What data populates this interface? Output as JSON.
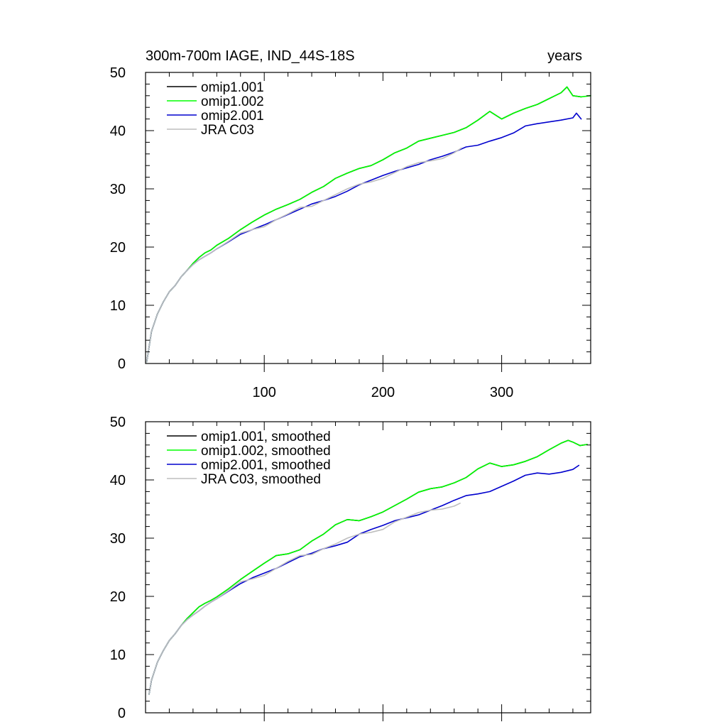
{
  "chart_data": [
    {
      "type": "line",
      "title": "300m-700m IAGE, IND_44S-18S",
      "units": "years",
      "xlim": [
        0,
        375
      ],
      "ylim": [
        0,
        50
      ],
      "x_ticks": [
        100,
        200,
        300
      ],
      "y_ticks": [
        0,
        10,
        20,
        30,
        40,
        50
      ],
      "x_tick_labels": [
        "100",
        "200",
        "300"
      ],
      "y_tick_labels": [
        "0",
        "10",
        "20",
        "30",
        "40",
        "50"
      ],
      "legend_position": "top-left",
      "series": [
        {
          "name": "omip1.001",
          "color": "#000000",
          "x": [
            1,
            5,
            10,
            15,
            20,
            25,
            30,
            35,
            40,
            45,
            50,
            55,
            60,
            70,
            80,
            90,
            100,
            110,
            120,
            130,
            140,
            150,
            160,
            170,
            180,
            190,
            200,
            210,
            220,
            230,
            240,
            250,
            260,
            270,
            280,
            290,
            300,
            310,
            320,
            330,
            340,
            350,
            355,
            360,
            367
          ],
          "y": [
            0.3,
            5.5,
            8.5,
            10.6,
            12.3,
            13.4,
            14.9,
            16.0,
            17.2,
            18.2,
            19.0,
            19.5,
            20.3,
            21.5,
            23.0,
            24.3,
            25.5,
            26.5,
            27.3,
            28.2,
            29.4,
            30.4,
            31.8,
            32.7,
            33.5,
            34.0,
            35.0,
            36.2,
            37.0,
            38.2,
            38.7,
            39.2,
            39.7,
            40.5,
            41.8,
            43.3,
            42.0,
            43.0,
            43.8,
            44.5,
            45.5,
            46.5,
            47.5,
            46.0,
            45.8
          ]
        },
        {
          "name": "omip1.002",
          "color": "#00ff00",
          "x": [
            1,
            5,
            10,
            15,
            20,
            25,
            30,
            35,
            40,
            45,
            50,
            55,
            60,
            70,
            80,
            90,
            100,
            110,
            120,
            130,
            140,
            150,
            160,
            170,
            180,
            190,
            200,
            210,
            220,
            230,
            240,
            250,
            260,
            270,
            280,
            290,
            300,
            310,
            320,
            330,
            340,
            350,
            355,
            360,
            367,
            375
          ],
          "y": [
            0.3,
            5.5,
            8.5,
            10.6,
            12.3,
            13.4,
            14.9,
            16.0,
            17.2,
            18.2,
            19.0,
            19.5,
            20.3,
            21.5,
            23.0,
            24.3,
            25.5,
            26.5,
            27.3,
            28.2,
            29.4,
            30.4,
            31.8,
            32.7,
            33.5,
            34.0,
            35.0,
            36.2,
            37.0,
            38.2,
            38.7,
            39.2,
            39.7,
            40.5,
            41.8,
            43.3,
            42.0,
            43.0,
            43.8,
            44.5,
            45.5,
            46.5,
            47.5,
            46.0,
            45.8,
            46.0
          ]
        },
        {
          "name": "omip2.001",
          "color": "#0000cd",
          "x": [
            1,
            5,
            10,
            15,
            20,
            25,
            30,
            35,
            40,
            45,
            50,
            55,
            60,
            70,
            80,
            90,
            100,
            110,
            120,
            130,
            140,
            150,
            160,
            170,
            180,
            190,
            200,
            210,
            220,
            230,
            240,
            250,
            260,
            270,
            280,
            290,
            300,
            310,
            320,
            330,
            340,
            350,
            360,
            363,
            367
          ],
          "y": [
            0.3,
            5.5,
            8.5,
            10.6,
            12.3,
            13.4,
            14.9,
            16.0,
            17.0,
            17.8,
            18.4,
            19.0,
            19.7,
            20.9,
            22.2,
            23.0,
            23.8,
            24.7,
            25.6,
            26.5,
            27.4,
            28.0,
            28.7,
            29.6,
            30.7,
            31.5,
            32.3,
            33.0,
            33.6,
            34.2,
            35.0,
            35.6,
            36.3,
            37.2,
            37.5,
            38.2,
            38.8,
            39.6,
            40.8,
            41.2,
            41.5,
            41.8,
            42.2,
            43.0,
            42.0
          ]
        },
        {
          "name": "JRA C03",
          "color": "#bebebe",
          "x": [
            1,
            5,
            10,
            15,
            20,
            25,
            30,
            35,
            40,
            45,
            50,
            55,
            60,
            70,
            80,
            90,
            100,
            110,
            120,
            130,
            140,
            150,
            160,
            170,
            180,
            190,
            200,
            210,
            220,
            230,
            240,
            250,
            260,
            266
          ],
          "y": [
            0.3,
            5.5,
            8.5,
            10.6,
            12.3,
            13.4,
            14.9,
            16.0,
            17.0,
            17.8,
            18.4,
            19.0,
            19.7,
            21.0,
            22.4,
            23.0,
            23.5,
            24.7,
            25.7,
            26.8,
            27.0,
            28.0,
            29.0,
            30.0,
            30.8,
            31.2,
            31.8,
            32.8,
            33.8,
            34.5,
            34.8,
            35.2,
            36.2,
            37.0
          ]
        }
      ]
    },
    {
      "type": "line",
      "title": "",
      "xlim": [
        0,
        375
      ],
      "ylim": [
        0,
        50
      ],
      "x_ticks": [
        100,
        200,
        300
      ],
      "y_ticks": [
        0,
        10,
        20,
        30,
        40,
        50
      ],
      "y_tick_labels": [
        "0",
        "10",
        "20",
        "30",
        "40",
        "50"
      ],
      "legend_position": "top-left",
      "series": [
        {
          "name": "omip1.001, smoothed",
          "color": "#000000",
          "x": [
            3,
            5,
            10,
            15,
            20,
            25,
            30,
            35,
            40,
            45,
            50,
            55,
            60,
            70,
            80,
            90,
            100,
            110,
            120,
            130,
            140,
            150,
            160,
            170,
            180,
            190,
            200,
            210,
            220,
            230,
            240,
            250,
            260,
            270,
            280,
            290,
            300,
            310,
            320,
            330,
            340,
            350,
            356,
            360,
            366,
            372
          ],
          "y": [
            3.2,
            5.6,
            8.7,
            10.7,
            12.4,
            13.6,
            15.0,
            16.2,
            17.2,
            18.2,
            18.8,
            19.3,
            19.9,
            21.3,
            22.9,
            24.3,
            25.7,
            27.0,
            27.3,
            28.0,
            29.5,
            30.7,
            32.3,
            33.2,
            33.0,
            33.7,
            34.5,
            35.6,
            36.7,
            37.9,
            38.5,
            38.8,
            39.5,
            40.4,
            41.9,
            42.9,
            42.3,
            42.6,
            43.2,
            44.0,
            45.2,
            46.3,
            46.8,
            46.5,
            45.9,
            46.1
          ]
        },
        {
          "name": "omip1.002, smoothed",
          "color": "#00ff00",
          "x": [
            3,
            5,
            10,
            15,
            20,
            25,
            30,
            35,
            40,
            45,
            50,
            55,
            60,
            70,
            80,
            90,
            100,
            110,
            120,
            130,
            140,
            150,
            160,
            170,
            180,
            190,
            200,
            210,
            220,
            230,
            240,
            250,
            260,
            270,
            280,
            290,
            300,
            310,
            320,
            330,
            340,
            350,
            356,
            360,
            366,
            372
          ],
          "y": [
            3.2,
            5.6,
            8.7,
            10.7,
            12.4,
            13.6,
            15.0,
            16.2,
            17.2,
            18.2,
            18.8,
            19.3,
            19.9,
            21.3,
            22.9,
            24.3,
            25.7,
            27.0,
            27.3,
            28.0,
            29.5,
            30.7,
            32.3,
            33.2,
            33.0,
            33.7,
            34.5,
            35.6,
            36.7,
            37.9,
            38.5,
            38.8,
            39.5,
            40.4,
            41.9,
            42.9,
            42.3,
            42.6,
            43.2,
            44.0,
            45.2,
            46.3,
            46.8,
            46.5,
            45.9,
            46.1
          ]
        },
        {
          "name": "omip2.001, smoothed",
          "color": "#0000cd",
          "x": [
            3,
            5,
            10,
            15,
            20,
            25,
            30,
            35,
            40,
            45,
            50,
            55,
            60,
            70,
            80,
            90,
            100,
            110,
            120,
            130,
            140,
            150,
            160,
            170,
            180,
            190,
            200,
            210,
            220,
            230,
            240,
            250,
            260,
            270,
            280,
            290,
            300,
            310,
            320,
            330,
            340,
            350,
            360,
            365
          ],
          "y": [
            3.2,
            5.6,
            8.7,
            10.7,
            12.4,
            13.6,
            15.0,
            16.0,
            16.8,
            17.5,
            18.3,
            19.0,
            19.6,
            20.9,
            22.2,
            23.2,
            24.0,
            24.8,
            25.8,
            26.8,
            27.4,
            28.2,
            28.7,
            29.3,
            30.7,
            31.5,
            32.2,
            33.0,
            33.5,
            34.0,
            34.8,
            35.6,
            36.5,
            37.3,
            37.6,
            38.0,
            38.9,
            39.8,
            40.8,
            41.2,
            41.0,
            41.3,
            41.8,
            42.5
          ]
        },
        {
          "name": "JRA C03, smoothed",
          "color": "#bebebe",
          "x": [
            3,
            5,
            10,
            15,
            20,
            25,
            30,
            35,
            40,
            45,
            50,
            55,
            60,
            70,
            80,
            90,
            100,
            110,
            120,
            130,
            140,
            150,
            160,
            170,
            180,
            190,
            200,
            210,
            220,
            230,
            240,
            250,
            260,
            265
          ],
          "y": [
            3.2,
            5.6,
            8.7,
            10.7,
            12.4,
            13.6,
            15.0,
            16.0,
            16.8,
            17.5,
            18.3,
            19.0,
            19.6,
            21.0,
            22.5,
            23.0,
            23.6,
            24.8,
            26.0,
            27.0,
            27.2,
            28.2,
            29.0,
            30.0,
            30.7,
            31.0,
            31.5,
            32.8,
            33.6,
            34.4,
            34.8,
            35.0,
            35.5,
            36.0
          ]
        }
      ]
    }
  ]
}
